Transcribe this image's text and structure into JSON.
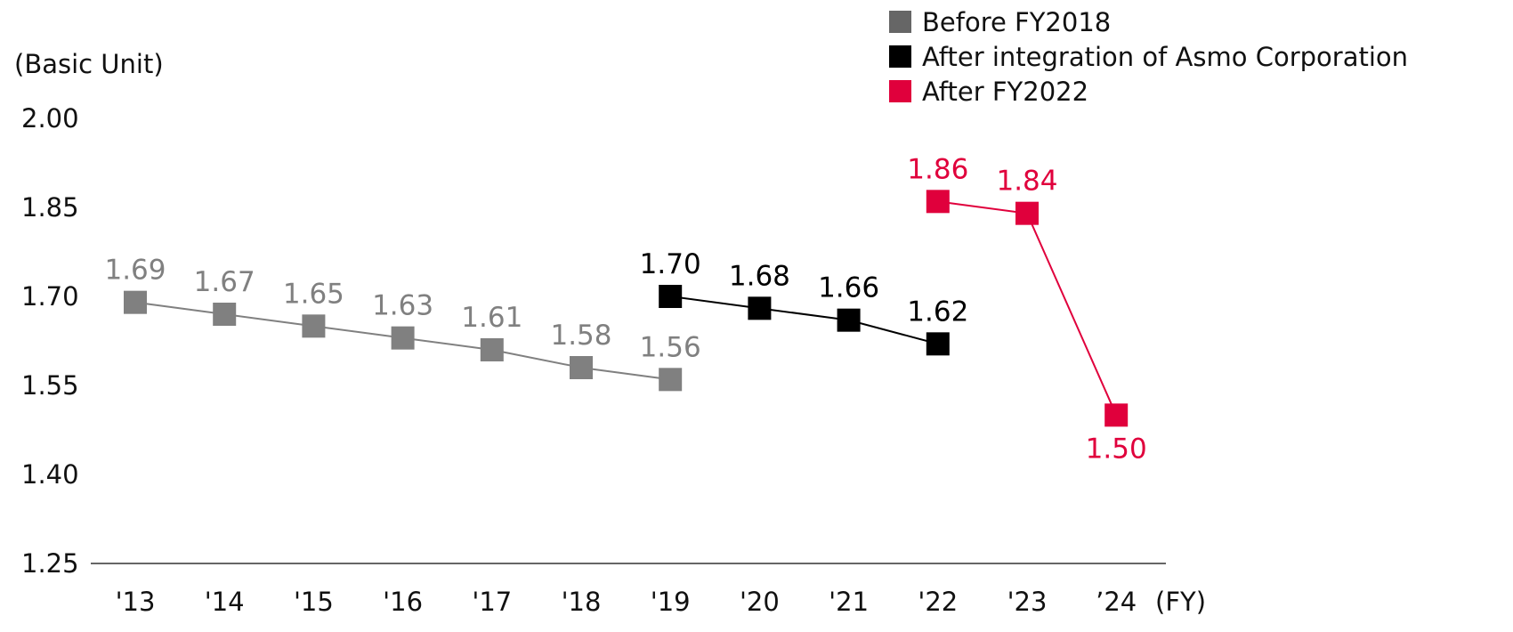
{
  "chart_data": {
    "type": "line",
    "ylabel": "(Basic Unit)",
    "xlabel": "(FY)",
    "ylim": [
      1.25,
      2.0
    ],
    "yticks": [
      "2.00",
      "1.85",
      "1.70",
      "1.55",
      "1.40",
      "1.25"
    ],
    "categories": [
      "'13",
      "'14",
      "'15",
      "'16",
      "'17",
      "'18",
      "'19",
      "'20",
      "'21",
      "'22",
      "'23",
      "’24"
    ],
    "series": [
      {
        "name": "Before FY2018",
        "color": "#808080",
        "legend_color": "#666666",
        "x": [
          "'13",
          "'14",
          "'15",
          "'16",
          "'17",
          "'18",
          "'19"
        ],
        "values": [
          1.69,
          1.67,
          1.65,
          1.63,
          1.61,
          1.58,
          1.56
        ],
        "labels": [
          "1.69",
          "1.67",
          "1.65",
          "1.63",
          "1.61",
          "1.58",
          "1.56"
        ]
      },
      {
        "name": "After integration of Asmo Corporation",
        "color": "#000000",
        "legend_color": "#000000",
        "x": [
          "'19",
          "'20",
          "'21",
          "'22"
        ],
        "values": [
          1.7,
          1.68,
          1.66,
          1.62
        ],
        "labels": [
          "1.70",
          "1.68",
          "1.66",
          "1.62"
        ]
      },
      {
        "name": "After FY2022",
        "color": "#e0003c",
        "legend_color": "#e0003c",
        "x": [
          "'22",
          "'23",
          "’24"
        ],
        "values": [
          1.86,
          1.84,
          1.5
        ],
        "labels": [
          "1.86",
          "1.84",
          "1.50"
        ]
      }
    ]
  }
}
